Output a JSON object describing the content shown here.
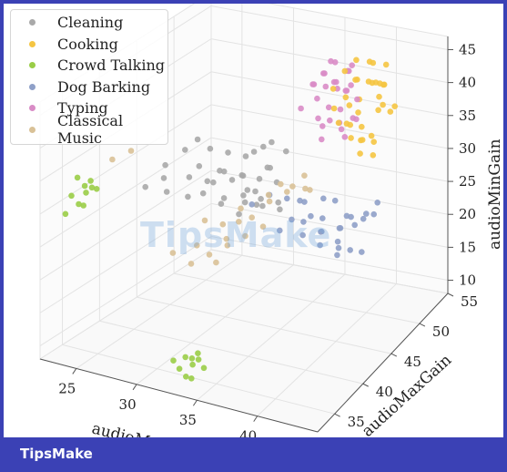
{
  "watermark": "TipsMake",
  "footer": {
    "brand": "TipsMake"
  },
  "chart_data": {
    "type": "scatter",
    "projection": "3d",
    "xlabel": "audioM",
    "ylabel": "audioMaxGain",
    "zlabel": "audioMinGain",
    "xticks": [
      "25",
      "30",
      "35",
      "40"
    ],
    "yticks": [
      "35",
      "40",
      "45",
      "50",
      "55"
    ],
    "zticks": [
      "10",
      "15",
      "20",
      "25",
      "30",
      "35",
      "40",
      "45"
    ],
    "xlim": [
      22,
      45
    ],
    "ylim": [
      32,
      55
    ],
    "zlim": [
      8,
      47
    ],
    "grid": true,
    "legend": "top-left",
    "series": [
      {
        "name": "Cleaning",
        "color": "#a9a9a9",
        "points": [
          [
            26,
            40,
            30
          ],
          [
            26.5,
            42,
            32
          ],
          [
            27,
            41,
            31
          ],
          [
            27,
            44,
            33
          ],
          [
            28,
            43,
            30
          ],
          [
            27.5,
            45,
            34
          ],
          [
            28,
            46,
            32
          ],
          [
            28.5,
            42,
            28
          ],
          [
            29,
            44,
            29
          ],
          [
            29,
            47,
            31
          ],
          [
            29.5,
            45,
            30
          ],
          [
            30,
            46,
            28
          ],
          [
            30,
            48,
            30
          ],
          [
            30.5,
            44,
            27
          ],
          [
            31,
            46,
            29
          ],
          [
            31,
            49,
            31
          ],
          [
            31.5,
            47,
            26
          ],
          [
            32,
            45,
            28
          ],
          [
            32,
            48,
            29
          ],
          [
            32.5,
            50,
            30
          ],
          [
            27,
            46,
            29
          ],
          [
            28,
            48,
            27
          ],
          [
            29,
            49,
            26
          ],
          [
            30,
            50,
            25
          ],
          [
            31,
            51,
            24
          ],
          [
            28.5,
            50,
            22
          ],
          [
            29.5,
            51,
            21
          ],
          [
            30.5,
            52,
            20
          ],
          [
            29,
            52,
            19
          ],
          [
            30,
            53,
            18
          ],
          [
            28,
            51,
            20
          ],
          [
            31,
            50,
            27
          ],
          [
            26,
            43,
            27
          ],
          [
            27,
            48,
            25
          ],
          [
            30,
            47,
            22
          ],
          [
            31,
            48,
            23
          ],
          [
            29,
            46,
            24
          ],
          [
            28,
            45,
            26
          ],
          [
            32,
            46,
            33
          ],
          [
            33,
            47,
            34
          ]
        ]
      },
      {
        "name": "Cooking",
        "color": "#f5c542",
        "points": [
          [
            38,
            50,
            44
          ],
          [
            38.5,
            51,
            45
          ],
          [
            39,
            50,
            43
          ],
          [
            39.5,
            52,
            44
          ],
          [
            40,
            51,
            42
          ],
          [
            38,
            52,
            41
          ],
          [
            38.5,
            53,
            40
          ],
          [
            39,
            54,
            39
          ],
          [
            39.5,
            53,
            38
          ],
          [
            40,
            52,
            37
          ],
          [
            37.5,
            51,
            39
          ],
          [
            37,
            50,
            38
          ],
          [
            38,
            49,
            37
          ],
          [
            38.5,
            50,
            36
          ],
          [
            39,
            51,
            35
          ],
          [
            39.5,
            50,
            34
          ],
          [
            40,
            49,
            33
          ],
          [
            40.5,
            50,
            35
          ],
          [
            38,
            51,
            33
          ],
          [
            38.5,
            52,
            32
          ],
          [
            39,
            53,
            31
          ],
          [
            39.5,
            52,
            30
          ],
          [
            37.5,
            53,
            35
          ],
          [
            37,
            52,
            34
          ],
          [
            40,
            53,
            40
          ],
          [
            40.5,
            52,
            41
          ],
          [
            41,
            51,
            39
          ],
          [
            41,
            53,
            37
          ],
          [
            38,
            54,
            42
          ],
          [
            39,
            55,
            41
          ],
          [
            37,
            54,
            36
          ],
          [
            38,
            55,
            38
          ],
          [
            40,
            54,
            35
          ],
          [
            39,
            49,
            40
          ],
          [
            37.5,
            49,
            42
          ]
        ]
      },
      {
        "name": "Crowd Talking",
        "color": "#9acd47",
        "points": [
          [
            24,
            33,
            33
          ],
          [
            24.5,
            34,
            34
          ],
          [
            25,
            33,
            32
          ],
          [
            24,
            34,
            31
          ],
          [
            24.5,
            35,
            33
          ],
          [
            25,
            34,
            35
          ],
          [
            23.5,
            33,
            30
          ],
          [
            24,
            35,
            32
          ],
          [
            25.5,
            34,
            34
          ],
          [
            24.5,
            33,
            36
          ],
          [
            33,
            33,
            11
          ],
          [
            33.5,
            34,
            12
          ],
          [
            34,
            33,
            10
          ],
          [
            33,
            34,
            9
          ],
          [
            33.5,
            35,
            11
          ],
          [
            34,
            34,
            13
          ],
          [
            32.5,
            33,
            12
          ],
          [
            34.5,
            34,
            11
          ],
          [
            33,
            35,
            10
          ],
          [
            33.5,
            33,
            13
          ]
        ]
      },
      {
        "name": "Dog Barking",
        "color": "#8fa0c8",
        "points": [
          [
            36,
            45,
            25
          ],
          [
            36.5,
            46,
            24
          ],
          [
            37,
            45,
            23
          ],
          [
            37.5,
            47,
            22
          ],
          [
            38,
            46,
            21
          ],
          [
            38.5,
            48,
            20
          ],
          [
            39,
            47,
            19
          ],
          [
            36,
            48,
            23
          ],
          [
            36.5,
            49,
            22
          ],
          [
            37,
            48,
            21
          ],
          [
            37.5,
            50,
            20
          ],
          [
            38,
            49,
            18
          ],
          [
            38.5,
            50,
            17
          ],
          [
            39,
            51,
            16
          ],
          [
            37,
            51,
            19
          ],
          [
            36,
            47,
            26
          ],
          [
            35,
            46,
            27
          ],
          [
            34,
            45,
            28
          ],
          [
            33,
            44,
            27
          ],
          [
            35.5,
            44,
            24
          ],
          [
            39.5,
            49,
            22
          ],
          [
            40,
            50,
            23
          ],
          [
            40.5,
            51,
            24
          ],
          [
            38,
            51,
            21
          ],
          [
            37,
            52,
            20
          ],
          [
            36,
            50,
            24
          ],
          [
            35,
            48,
            25
          ],
          [
            39,
            53,
            20
          ],
          [
            38,
            53,
            19
          ],
          [
            36.5,
            51,
            23
          ]
        ]
      },
      {
        "name": "Typing",
        "color": "#d98cc6",
        "points": [
          [
            36,
            50,
            43
          ],
          [
            36.5,
            51,
            44
          ],
          [
            37,
            50,
            42
          ],
          [
            37.5,
            52,
            43
          ],
          [
            38,
            51,
            41
          ],
          [
            36,
            52,
            40
          ],
          [
            36.5,
            53,
            41
          ],
          [
            37,
            52,
            39
          ],
          [
            37.5,
            51,
            40
          ],
          [
            35.5,
            51,
            42
          ],
          [
            35,
            50,
            41
          ],
          [
            35.5,
            52,
            43
          ],
          [
            36,
            49,
            40
          ],
          [
            36.5,
            50,
            38
          ],
          [
            37,
            51,
            37
          ],
          [
            37.5,
            50,
            36
          ],
          [
            38,
            52,
            38
          ],
          [
            35,
            52,
            39
          ],
          [
            35.5,
            53,
            38
          ],
          [
            36,
            54,
            40
          ],
          [
            36.5,
            49,
            36
          ],
          [
            37,
            48,
            35
          ],
          [
            38,
            50,
            34
          ],
          [
            38.5,
            51,
            36
          ],
          [
            34.5,
            51,
            40
          ],
          [
            34.5,
            49,
            38
          ],
          [
            36,
            51,
            35
          ],
          [
            37,
            53,
            34
          ],
          [
            35.5,
            50,
            36
          ],
          [
            36.5,
            52,
            33
          ]
        ]
      },
      {
        "name": "Classical Music",
        "color": "#d9c197",
        "points": [
          [
            30,
            42,
            25
          ],
          [
            31,
            43,
            24
          ],
          [
            32,
            44,
            26
          ],
          [
            33,
            44,
            25
          ],
          [
            34,
            45,
            27
          ],
          [
            35,
            46,
            28
          ],
          [
            35.5,
            46,
            29
          ],
          [
            36,
            47,
            30
          ],
          [
            36.5,
            47,
            28
          ],
          [
            32,
            42,
            22
          ],
          [
            33,
            43,
            23
          ],
          [
            34,
            44,
            24
          ],
          [
            31,
            41,
            21
          ],
          [
            30.5,
            40,
            23
          ],
          [
            29,
            39,
            22
          ],
          [
            30,
            40,
            20
          ],
          [
            31,
            42,
            19
          ],
          [
            33,
            42,
            26
          ],
          [
            34.5,
            44,
            29
          ],
          [
            35,
            45,
            30
          ],
          [
            25,
            37,
            36
          ],
          [
            26,
            38,
            37
          ],
          [
            32.5,
            41,
            24
          ],
          [
            35.5,
            48,
            27
          ]
        ]
      }
    ]
  }
}
